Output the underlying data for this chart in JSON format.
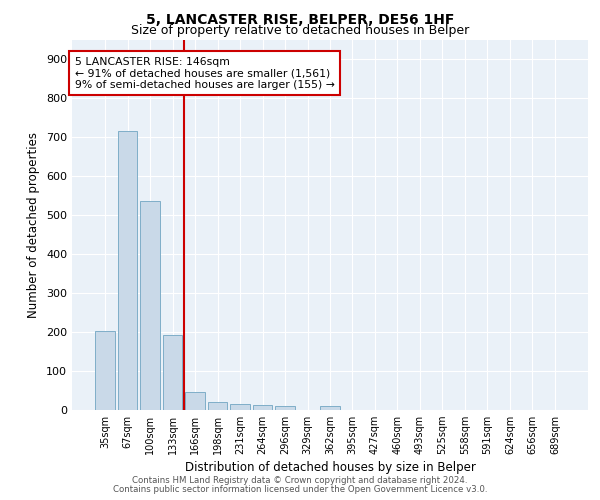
{
  "title": "5, LANCASTER RISE, BELPER, DE56 1HF",
  "subtitle": "Size of property relative to detached houses in Belper",
  "xlabel": "Distribution of detached houses by size in Belper",
  "ylabel": "Number of detached properties",
  "bar_labels": [
    "35sqm",
    "67sqm",
    "100sqm",
    "133sqm",
    "166sqm",
    "198sqm",
    "231sqm",
    "264sqm",
    "296sqm",
    "329sqm",
    "362sqm",
    "395sqm",
    "427sqm",
    "460sqm",
    "493sqm",
    "525sqm",
    "558sqm",
    "591sqm",
    "624sqm",
    "656sqm",
    "689sqm"
  ],
  "bar_values": [
    202,
    716,
    537,
    193,
    47,
    20,
    16,
    13,
    10,
    0,
    9,
    0,
    0,
    0,
    0,
    0,
    0,
    0,
    0,
    0,
    0
  ],
  "bar_color": "#c9d9e8",
  "bar_edge_color": "#7faec8",
  "annotation_line1": "5 LANCASTER RISE: 146sqm",
  "annotation_line2": "← 91% of detached houses are smaller (1,561)",
  "annotation_line3": "9% of semi-detached houses are larger (155) →",
  "vline_color": "#cc0000",
  "annotation_box_color": "#ffffff",
  "annotation_box_edge": "#cc0000",
  "ylim": [
    0,
    950
  ],
  "yticks": [
    0,
    100,
    200,
    300,
    400,
    500,
    600,
    700,
    800,
    900
  ],
  "footnote1": "Contains HM Land Registry data © Crown copyright and database right 2024.",
  "footnote2": "Contains public sector information licensed under the Open Government Licence v3.0.",
  "background_color": "#eaf1f8",
  "title_fontsize": 10,
  "subtitle_fontsize": 9
}
